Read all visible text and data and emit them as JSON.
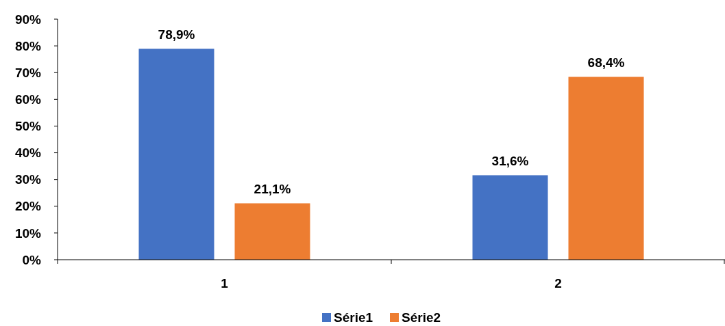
{
  "chart_data": {
    "type": "bar",
    "categories": [
      "1",
      "2"
    ],
    "series": [
      {
        "name": "Série1",
        "color": "#4472c4",
        "values": [
          78.9,
          31.6
        ],
        "value_labels": [
          "78,9%",
          "31,6%"
        ]
      },
      {
        "name": "Série2",
        "color": "#ed7d31",
        "values": [
          21.1,
          68.4
        ],
        "value_labels": [
          "21,1%",
          "68,4%"
        ]
      }
    ],
    "ylim": [
      0,
      90
    ],
    "yticks": [
      {
        "value": 0,
        "label": "0%"
      },
      {
        "value": 10,
        "label": "10%"
      },
      {
        "value": 20,
        "label": "20%"
      },
      {
        "value": 30,
        "label": "30%"
      },
      {
        "value": 40,
        "label": "40%"
      },
      {
        "value": 50,
        "label": "50%"
      },
      {
        "value": 60,
        "label": "60%"
      },
      {
        "value": 70,
        "label": "70%"
      },
      {
        "value": 80,
        "label": "80%"
      },
      {
        "value": 90,
        "label": "90%"
      }
    ],
    "grid": false,
    "legend": "bottom"
  }
}
